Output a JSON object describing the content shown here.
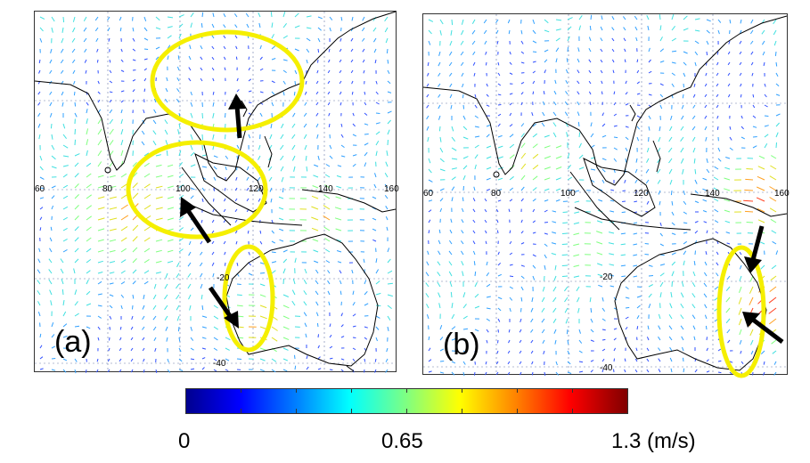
{
  "panels": [
    {
      "label": "(a)",
      "lon_ticks": [
        "60",
        "80",
        "100",
        "120",
        "140",
        "160"
      ],
      "lat_ticks": [
        "-20",
        "-40"
      ]
    },
    {
      "label": "(b)",
      "lon_ticks": [
        "60",
        "80",
        "100",
        "120",
        "140",
        "160"
      ],
      "lat_ticks": [
        "-20",
        "-40"
      ]
    }
  ],
  "colorbar": {
    "min_label": "0",
    "mid_label": "0.65",
    "max_label": "1.3 (m/s)"
  },
  "colors": {
    "highlight": "#f5ef00",
    "arrow": "#000000",
    "coast": "#000000"
  }
}
